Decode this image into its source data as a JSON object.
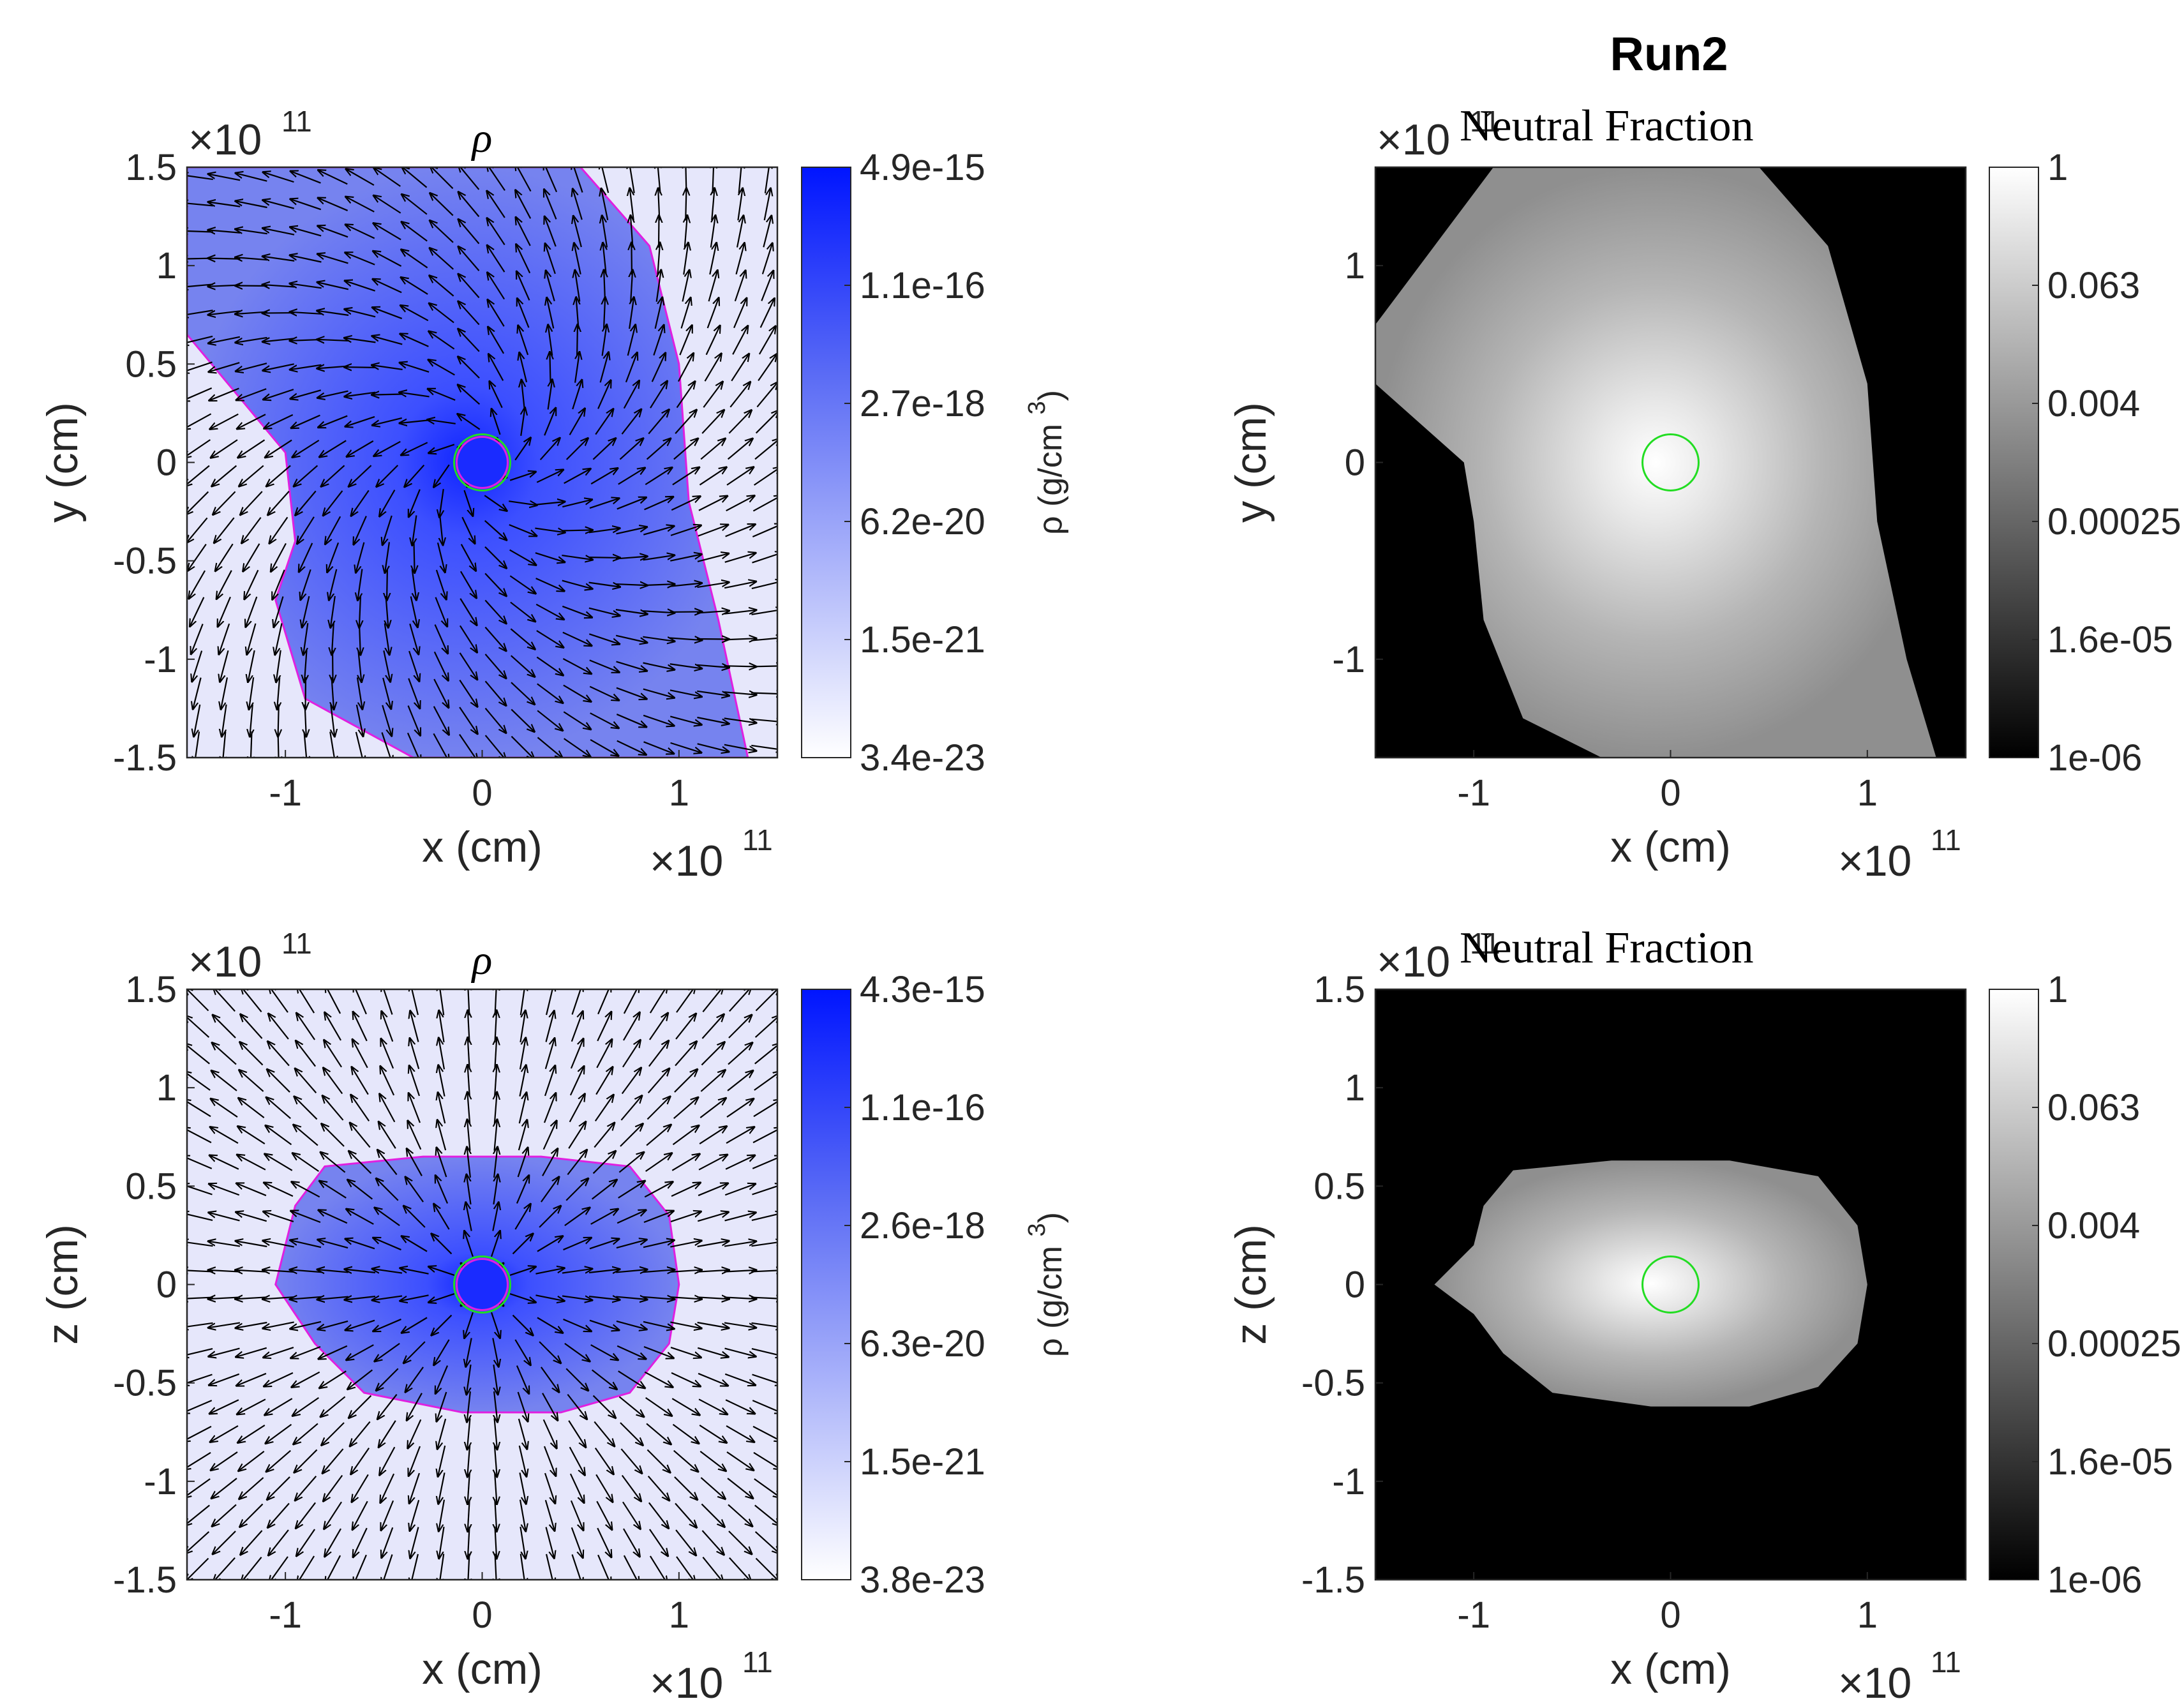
{
  "figure_title": "Run2",
  "chart_data": [
    {
      "id": "p1",
      "type": "heatmap",
      "title": "ρ",
      "xlabel": "x (cm)",
      "ylabel": "y (cm)",
      "xlim": [
        -1.5,
        1.5
      ],
      "ylim": [
        -1.5,
        1.5
      ],
      "xticks": [
        "-1",
        "0",
        "1"
      ],
      "yticks": [
        "1.5",
        "1",
        "0.5",
        "0",
        "-0.5",
        "-1",
        "-1.5"
      ],
      "x_exponent": "×10",
      "x_exponent_power": "11",
      "y_exponent": "×10",
      "y_exponent_power": "11",
      "colorbar": {
        "label": "ρ (g/cm",
        "label_power": "3",
        "label_close": ")",
        "ticks": [
          "4.9e-15",
          "1.1e-16",
          "2.7e-18",
          "6.2e-20",
          "1.5e-21",
          "3.4e-23"
        ],
        "colors": [
          "#0015ff",
          "#ffffff"
        ]
      },
      "overlays": [
        "velocity arrows",
        "magenta contour",
        "green circle"
      ]
    },
    {
      "id": "p2",
      "type": "heatmap",
      "title": "Neutral Fraction",
      "xlabel": "x (cm)",
      "ylabel": "y (cm)",
      "xlim": [
        -1.5,
        1.5
      ],
      "ylim": [
        -1.5,
        1.5
      ],
      "xticks": [
        "-1",
        "0",
        "1"
      ],
      "yticks": [
        "1",
        "0",
        "-1"
      ],
      "x_exponent": "×10",
      "x_exponent_power": "11",
      "y_exponent": "×10",
      "y_exponent_power": "11",
      "colorbar": {
        "ticks": [
          "1",
          "0.063",
          "0.004",
          "0.00025",
          "1.6e-05",
          "1e-06"
        ],
        "colors": [
          "#ffffff",
          "#000000"
        ]
      },
      "overlays": [
        "green circle"
      ]
    },
    {
      "id": "p3",
      "type": "heatmap",
      "title": "ρ",
      "xlabel": "x (cm)",
      "ylabel": "z (cm)",
      "xlim": [
        -1.5,
        1.5
      ],
      "ylim": [
        -1.5,
        1.5
      ],
      "xticks": [
        "-1",
        "0",
        "1"
      ],
      "yticks": [
        "1.5",
        "1",
        "0.5",
        "0",
        "-0.5",
        "-1",
        "-1.5"
      ],
      "x_exponent": "×10",
      "x_exponent_power": "11",
      "y_exponent": "×10",
      "y_exponent_power": "11",
      "colorbar": {
        "label": "ρ (g/cm",
        "label_power": "3",
        "label_close": ")",
        "ticks": [
          "4.3e-15",
          "1.1e-16",
          "2.6e-18",
          "6.3e-20",
          "1.5e-21",
          "3.8e-23"
        ],
        "colors": [
          "#0015ff",
          "#ffffff"
        ]
      },
      "overlays": [
        "velocity arrows",
        "magenta contour",
        "green circle"
      ]
    },
    {
      "id": "p4",
      "type": "heatmap",
      "title": "Neutral Fraction",
      "xlabel": "x (cm)",
      "ylabel": "z (cm)",
      "xlim": [
        -1.5,
        1.5
      ],
      "ylim": [
        -1.5,
        1.5
      ],
      "xticks": [
        "-1",
        "0",
        "1"
      ],
      "yticks": [
        "1.5",
        "1",
        "0.5",
        "0",
        "-0.5",
        "-1",
        "-1.5"
      ],
      "x_exponent": "×10",
      "x_exponent_power": "11",
      "y_exponent": "×10",
      "y_exponent_power": "11",
      "colorbar": {
        "ticks": [
          "1",
          "0.063",
          "0.004",
          "0.00025",
          "1.6e-05",
          "1e-06"
        ],
        "colors": [
          "#ffffff",
          "#000000"
        ]
      },
      "overlays": [
        "green circle"
      ]
    }
  ]
}
